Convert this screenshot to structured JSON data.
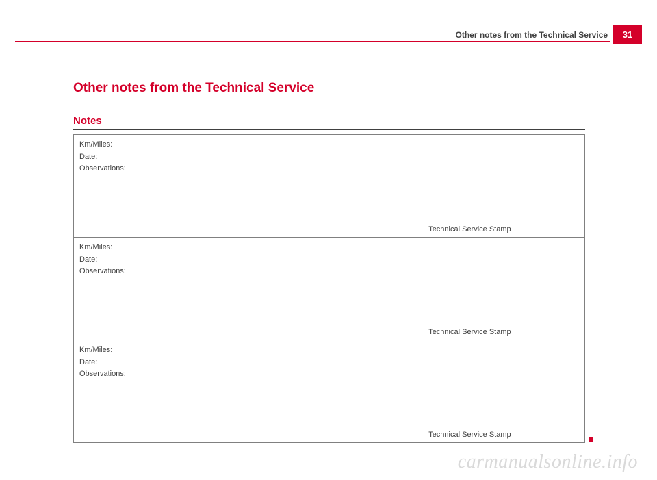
{
  "header": {
    "title": "Other notes from the Technical Service",
    "page_number": "31",
    "rule_color": "#d4002a",
    "badge_bg": "#d4002a",
    "badge_fg": "#ffffff"
  },
  "content": {
    "main_title": "Other notes from the Technical Service",
    "section_title": "Notes",
    "title_color": "#d4002a"
  },
  "table": {
    "rows": [
      {
        "km_label": "Km/Miles:",
        "date_label": "Date:",
        "obs_label": "Observations:",
        "stamp_label": "Technical Service Stamp"
      },
      {
        "km_label": "Km/Miles:",
        "date_label": "Date:",
        "obs_label": "Observations:",
        "stamp_label": "Technical Service Stamp"
      },
      {
        "km_label": "Km/Miles:",
        "date_label": "Date:",
        "obs_label": "Observations:",
        "stamp_label": "Technical Service Stamp"
      }
    ],
    "border_color": "#808080",
    "text_color": "#404040"
  },
  "watermark": {
    "text": "carmanualsonline.info",
    "color": "#d9d9d9"
  }
}
